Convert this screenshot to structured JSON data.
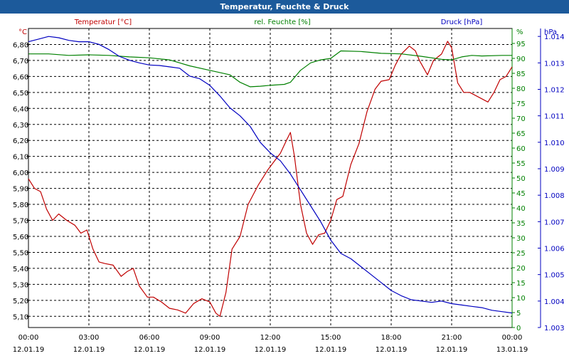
{
  "window": {
    "title": "Temperatur, Feuchte & Druck"
  },
  "colors": {
    "temperature": "#c00000",
    "humidity": "#008000",
    "pressure": "#0000c0",
    "titlebar": "#1c5a9b",
    "grid": "#000000"
  },
  "chart_data": {
    "type": "line",
    "title": "Temperatur, Feuchte & Druck",
    "grid": true,
    "x_ticks": [
      {
        "time": "00:00",
        "date": "12.01.19"
      },
      {
        "time": "03:00",
        "date": "12.01.19"
      },
      {
        "time": "06:00",
        "date": "12.01.19"
      },
      {
        "time": "09:00",
        "date": "12.01.19"
      },
      {
        "time": "12:00",
        "date": "12.01.19"
      },
      {
        "time": "15:00",
        "date": "12.01.19"
      },
      {
        "time": "18:00",
        "date": "12.01.19"
      },
      {
        "time": "21:00",
        "date": "12.01.19"
      },
      {
        "time": "00:00",
        "date": "13.01.19"
      }
    ],
    "x_range_hours": [
      0,
      24
    ],
    "axes": {
      "temperature": {
        "label": "Temperatur [°C]",
        "unit": "°C",
        "range": [
          5.03,
          6.9
        ],
        "ticks": [
          "5,10",
          "5,20",
          "5,30",
          "5,40",
          "5,50",
          "5,60",
          "5,70",
          "5,80",
          "5,90",
          "6,00",
          "6,10",
          "6,20",
          "6,30",
          "6,40",
          "6,50",
          "6,60",
          "6,70",
          "6,80"
        ]
      },
      "humidity": {
        "label": "rel. Feuchte [%]",
        "unit": "%",
        "range": [
          0,
          100
        ],
        "ticks": [
          "0",
          "5",
          "10",
          "15",
          "20",
          "25",
          "30",
          "35",
          "40",
          "45",
          "50",
          "55",
          "60",
          "65",
          "70",
          "75",
          "80",
          "85",
          "90",
          "95"
        ]
      },
      "pressure": {
        "label": "Druck [hPa]",
        "unit": "hPa",
        "range": [
          1003.0,
          1014.3
        ],
        "ticks": [
          "1.003",
          "1.004",
          "1.005",
          "1.006",
          "1.007",
          "1.008",
          "1.009",
          "1.010",
          "1.011",
          "1.012",
          "1.013",
          "1.014"
        ]
      }
    },
    "series": [
      {
        "name": "Temperatur [°C]",
        "axis": "temperature",
        "points": [
          [
            0,
            5.96
          ],
          [
            0.3,
            5.9
          ],
          [
            0.6,
            5.88
          ],
          [
            0.9,
            5.77
          ],
          [
            1.2,
            5.7
          ],
          [
            1.5,
            5.74
          ],
          [
            1.9,
            5.7
          ],
          [
            2.3,
            5.67
          ],
          [
            2.6,
            5.62
          ],
          [
            2.9,
            5.64
          ],
          [
            3.2,
            5.52
          ],
          [
            3.5,
            5.44
          ],
          [
            3.8,
            5.43
          ],
          [
            4.2,
            5.42
          ],
          [
            4.6,
            5.35
          ],
          [
            4.9,
            5.38
          ],
          [
            5.2,
            5.4
          ],
          [
            5.5,
            5.29
          ],
          [
            5.9,
            5.22
          ],
          [
            6.2,
            5.22
          ],
          [
            6.6,
            5.19
          ],
          [
            7.0,
            5.15
          ],
          [
            7.4,
            5.14
          ],
          [
            7.8,
            5.12
          ],
          [
            8.2,
            5.18
          ],
          [
            8.6,
            5.21
          ],
          [
            9.0,
            5.19
          ],
          [
            9.3,
            5.12
          ],
          [
            9.5,
            5.1
          ],
          [
            9.8,
            5.25
          ],
          [
            10.1,
            5.52
          ],
          [
            10.5,
            5.6
          ],
          [
            10.9,
            5.8
          ],
          [
            11.4,
            5.92
          ],
          [
            11.9,
            6.02
          ],
          [
            12.2,
            6.07
          ],
          [
            12.5,
            6.12
          ],
          [
            12.8,
            6.2
          ],
          [
            13.0,
            6.25
          ],
          [
            13.2,
            6.1
          ],
          [
            13.5,
            5.8
          ],
          [
            13.8,
            5.62
          ],
          [
            14.1,
            5.55
          ],
          [
            14.4,
            5.61
          ],
          [
            14.7,
            5.62
          ],
          [
            15.0,
            5.7
          ],
          [
            15.3,
            5.83
          ],
          [
            15.6,
            5.85
          ],
          [
            16.0,
            6.05
          ],
          [
            16.4,
            6.18
          ],
          [
            16.8,
            6.38
          ],
          [
            17.2,
            6.52
          ],
          [
            17.5,
            6.57
          ],
          [
            17.9,
            6.58
          ],
          [
            18.2,
            6.67
          ],
          [
            18.5,
            6.74
          ],
          [
            18.9,
            6.79
          ],
          [
            19.2,
            6.76
          ],
          [
            19.4,
            6.7
          ],
          [
            19.8,
            6.61
          ],
          [
            20.1,
            6.7
          ],
          [
            20.5,
            6.74
          ],
          [
            20.8,
            6.82
          ],
          [
            21.0,
            6.78
          ],
          [
            21.3,
            6.56
          ],
          [
            21.6,
            6.5
          ],
          [
            21.9,
            6.5
          ],
          [
            22.2,
            6.48
          ],
          [
            22.5,
            6.46
          ],
          [
            22.8,
            6.44
          ],
          [
            23.1,
            6.5
          ],
          [
            23.4,
            6.58
          ],
          [
            23.7,
            6.6
          ],
          [
            24.0,
            6.66
          ]
        ]
      },
      {
        "name": "rel. Feuchte [%]",
        "axis": "humidity",
        "points": [
          [
            0,
            91.5
          ],
          [
            1.0,
            91.5
          ],
          [
            2.0,
            91
          ],
          [
            3.0,
            91.2
          ],
          [
            4.0,
            91
          ],
          [
            5.0,
            90.5
          ],
          [
            6.0,
            90.2
          ],
          [
            7.0,
            89.5
          ],
          [
            8.0,
            87.5
          ],
          [
            9.0,
            86
          ],
          [
            10.0,
            84.5
          ],
          [
            10.5,
            82
          ],
          [
            11.0,
            80.5
          ],
          [
            11.5,
            80.7
          ],
          [
            12.0,
            81
          ],
          [
            12.7,
            81.3
          ],
          [
            13.0,
            82
          ],
          [
            13.5,
            86
          ],
          [
            14.0,
            88.5
          ],
          [
            14.5,
            89.5
          ],
          [
            15.0,
            90
          ],
          [
            15.5,
            92.5
          ],
          [
            16.5,
            92.3
          ],
          [
            17.5,
            91.7
          ],
          [
            18.5,
            91.5
          ],
          [
            19.5,
            90.7
          ],
          [
            20.5,
            89.7
          ],
          [
            21.0,
            89.5
          ],
          [
            21.5,
            90.5
          ],
          [
            22.0,
            91
          ],
          [
            22.5,
            90.8
          ],
          [
            23.5,
            91
          ],
          [
            24.0,
            91
          ]
        ]
      },
      {
        "name": "Druck [hPa]",
        "axis": "pressure",
        "points": [
          [
            0,
            1013.8
          ],
          [
            0.5,
            1013.9
          ],
          [
            1.0,
            1014.0
          ],
          [
            1.5,
            1013.95
          ],
          [
            2.0,
            1013.85
          ],
          [
            2.5,
            1013.8
          ],
          [
            3.0,
            1013.8
          ],
          [
            3.5,
            1013.7
          ],
          [
            4.0,
            1013.5
          ],
          [
            4.5,
            1013.25
          ],
          [
            5.0,
            1013.1
          ],
          [
            5.5,
            1013.0
          ],
          [
            6.0,
            1012.92
          ],
          [
            6.5,
            1012.9
          ],
          [
            7.0,
            1012.85
          ],
          [
            7.5,
            1012.8
          ],
          [
            8.0,
            1012.5
          ],
          [
            8.5,
            1012.4
          ],
          [
            9.0,
            1012.15
          ],
          [
            9.5,
            1011.75
          ],
          [
            10.0,
            1011.3
          ],
          [
            10.5,
            1011.0
          ],
          [
            11.0,
            1010.6
          ],
          [
            11.5,
            1010.0
          ],
          [
            12.0,
            1009.6
          ],
          [
            12.5,
            1009.3
          ],
          [
            13.0,
            1008.8
          ],
          [
            13.5,
            1008.2
          ],
          [
            14.0,
            1007.6
          ],
          [
            14.5,
            1007.0
          ],
          [
            15.0,
            1006.3
          ],
          [
            15.5,
            1005.8
          ],
          [
            16.0,
            1005.6
          ],
          [
            16.5,
            1005.3
          ],
          [
            17.0,
            1005.0
          ],
          [
            17.5,
            1004.7
          ],
          [
            18.0,
            1004.4
          ],
          [
            18.5,
            1004.2
          ],
          [
            19.0,
            1004.05
          ],
          [
            19.5,
            1004.0
          ],
          [
            20.0,
            1003.95
          ],
          [
            20.5,
            1004.0
          ],
          [
            21.0,
            1003.9
          ],
          [
            21.5,
            1003.85
          ],
          [
            22.0,
            1003.8
          ],
          [
            22.5,
            1003.75
          ],
          [
            23.0,
            1003.65
          ],
          [
            23.5,
            1003.6
          ],
          [
            24.0,
            1003.55
          ]
        ]
      }
    ]
  }
}
